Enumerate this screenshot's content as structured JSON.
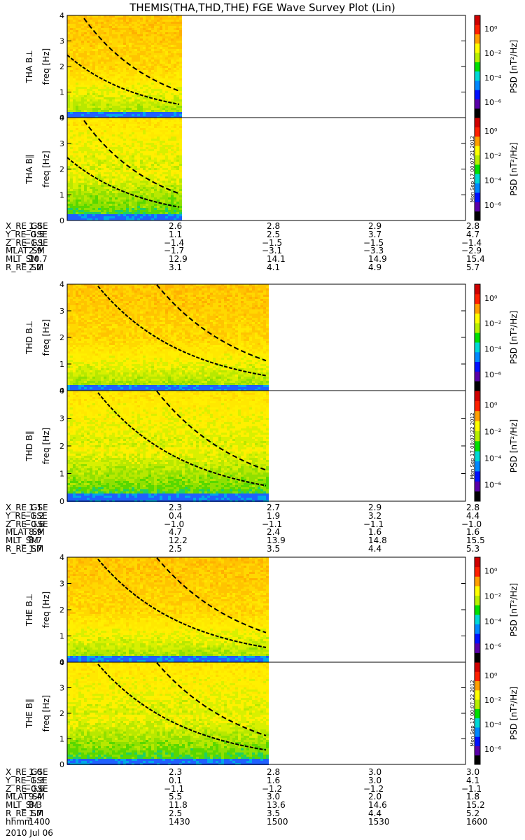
{
  "title": "THEMIS(THA,THD,THE) FGE Wave Survey Plot (Lin)",
  "date": "2010 Jul 06",
  "freq_label": "freq [Hz]",
  "colorbar": {
    "label": "PSD [nT²/Hz]",
    "ticks": [
      "10⁰",
      "10⁻²",
      "10⁻⁴",
      "10⁻⁶"
    ],
    "colors": [
      "#000000",
      "#5a00a8",
      "#0010ff",
      "#0088ff",
      "#00d8d8",
      "#00e000",
      "#b8f000",
      "#ffff00",
      "#ffa000",
      "#ff2000",
      "#d00000"
    ]
  },
  "stamps": [
    "Mon Sep 17 00:07:21 2012",
    "Mon Sep 17 00:07:22 2012",
    "Mon Sep 17 00:07:22 2012"
  ],
  "probes": [
    {
      "id": "THA",
      "panels": [
        {
          "label": "THA B⊥",
          "data_end": "1434"
        },
        {
          "label": "THA B∥",
          "data_end": "1434"
        }
      ],
      "ephemeris": {
        "X_RE_GSE": [
          "1.8",
          "2.6",
          "2.8",
          "2.9",
          "2.8"
        ],
        "Y_RE_GSE": [
          "-0.5",
          "1.1",
          "2.5",
          "3.7",
          "4.7"
        ],
        "Z_RE_GSE": [
          "-1.1",
          "-1.4",
          "-1.5",
          "-1.5",
          "-1.4"
        ],
        "MLAT_SM": [
          "2.9",
          "-1.7",
          "-3.1",
          "-3.3",
          "-2.9"
        ],
        "MLT_SM": [
          "10.7",
          "12.9",
          "14.1",
          "14.9",
          "15.4"
        ],
        "R_RE_SM": [
          "2.2",
          "3.1",
          "4.1",
          "4.9",
          "5.7"
        ]
      }
    },
    {
      "id": "THD",
      "panels": [
        {
          "label": "THD B⊥",
          "data_end": "1500"
        },
        {
          "label": "THD B∥",
          "data_end": "1500"
        }
      ],
      "ephemeris": {
        "X_RE_GSE": [
          "1.1",
          "2.3",
          "2.7",
          "2.9",
          "2.8"
        ],
        "Y_RE_GSE": [
          "-1.2",
          "0.4",
          "1.9",
          "3.2",
          "4.4"
        ],
        "Z_RE_GSE": [
          "-0.6",
          "-1.0",
          "-1.1",
          "-1.1",
          "-1.0"
        ],
        "MLAT_SM": [
          "8.9",
          "4.7",
          "2.4",
          "1.6",
          "1.6"
        ],
        "MLT_SM": [
          "8.7",
          "12.2",
          "13.9",
          "14.8",
          "15.5"
        ],
        "R_RE_SM": [
          "1.7",
          "2.5",
          "3.5",
          "4.4",
          "5.3"
        ]
      }
    },
    {
      "id": "THE",
      "panels": [
        {
          "label": "THE B⊥",
          "data_end": "1500"
        },
        {
          "label": "THE B∥",
          "data_end": "1500"
        }
      ],
      "ephemeris": {
        "X_RE_GSE": [
          "1.0",
          "2.3",
          "2.8",
          "3.0",
          "3.0"
        ],
        "Y_RE_GSE": [
          "-1.3",
          "0.1",
          "1.6",
          "3.0",
          "4.1"
        ],
        "Z_RE_GSE": [
          "-0.6",
          "-1.1",
          "-1.2",
          "-1.2",
          "-1.1"
        ],
        "MLAT_SM": [
          "9.4",
          "5.5",
          "3.0",
          "2.0",
          "1.8"
        ],
        "MLT_SM": [
          "8.3",
          "11.8",
          "13.6",
          "14.6",
          "15.2"
        ],
        "R_RE_SM": [
          "1.7",
          "2.5",
          "3.5",
          "4.4",
          "5.2"
        ]
      },
      "hhmm": [
        "1400",
        "1430",
        "1500",
        "1530",
        "1600"
      ]
    }
  ],
  "chart_data": {
    "type": "heatmap",
    "title": "THEMIS(THA,THD,THE) FGE Wave Survey Plot (Lin)",
    "ylabel": "freq [Hz]",
    "ylim": [
      0,
      4
    ],
    "y_ticks": [
      0,
      1,
      2,
      3,
      4
    ],
    "x_ticks": [
      "1400",
      "1430",
      "1500",
      "1530",
      "1600"
    ],
    "xlim": [
      "1400",
      "1600"
    ],
    "colorbar_range": [
      "10⁻⁶",
      "10¹"
    ],
    "colorbar_scale": "log"
  }
}
